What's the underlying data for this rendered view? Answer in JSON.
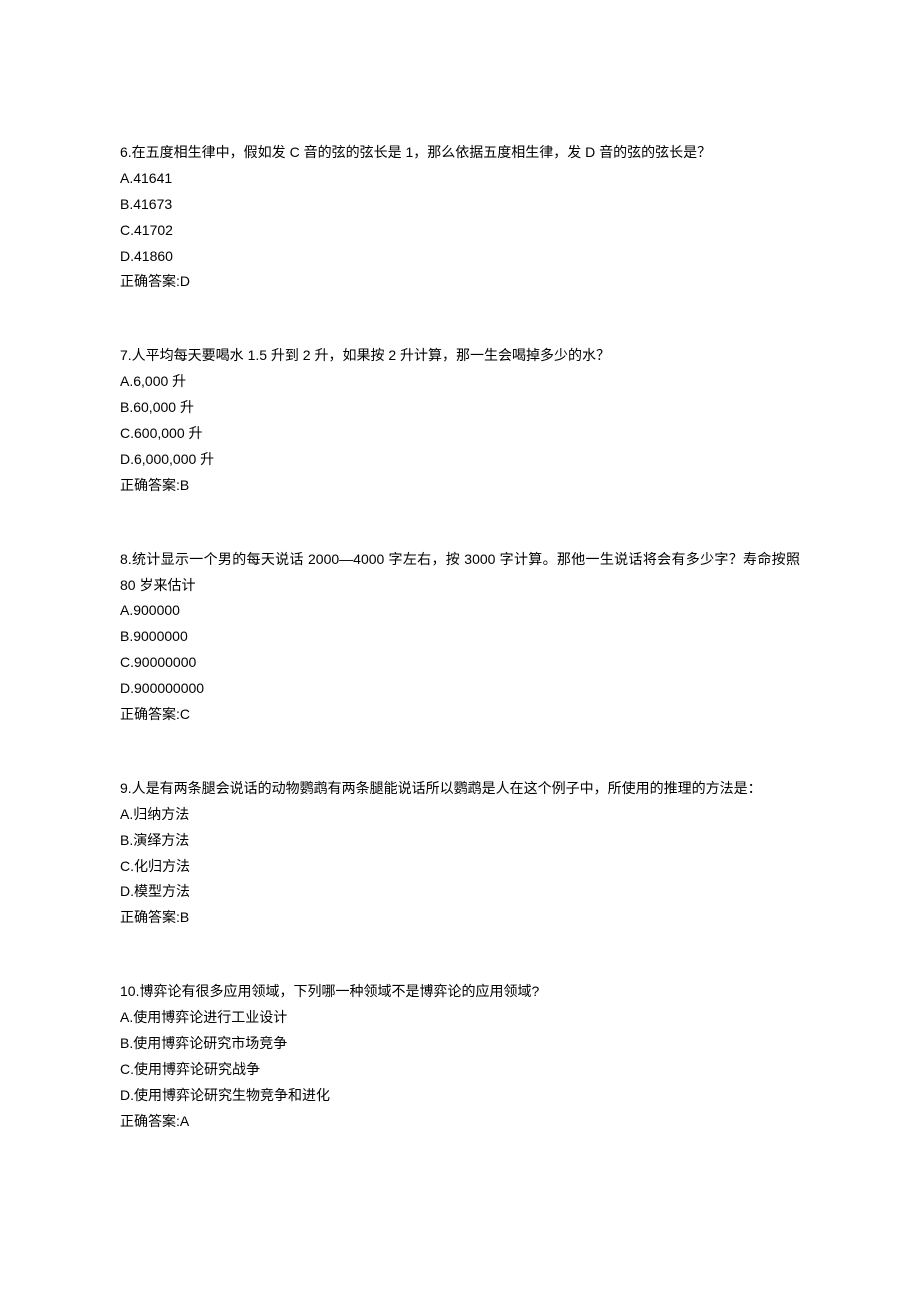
{
  "page": {
    "background_color": "#ffffff",
    "text_color": "#000000",
    "font_family": "Microsoft YaHei, SimSun, Arial, sans-serif",
    "font_size_pt": 11,
    "line_height": 1.85
  },
  "questions": [
    {
      "number": "6",
      "text": "6.在五度相生律中，假如发 C 音的弦的弦长是 1，那么依据五度相生律，发 D 音的弦的弦长是？",
      "options": [
        "A.41641",
        "B.41673",
        "C.41702",
        "D.41860"
      ],
      "answer": "正确答案:D"
    },
    {
      "number": "7",
      "text": "7.人平均每天要喝水 1.5 升到 2 升，如果按 2 升计算，那一生会喝掉多少的水？",
      "options": [
        "A.6,000 升",
        "B.60,000 升",
        "C.600,000 升",
        "D.6,000,000 升"
      ],
      "answer": "正确答案:B"
    },
    {
      "number": "8",
      "text": "8.统计显示一个男的每天说话 2000—4000 字左右，按 3000 字计算。那他一生说话将会有多少字？寿命按照 80 岁来估计",
      "options": [
        "A.900000",
        "B.9000000",
        "C.90000000",
        "D.900000000"
      ],
      "answer": "正确答案:C"
    },
    {
      "number": "9",
      "text": "9.人是有两条腿会说话的动物鹦鹉有两条腿能说话所以鹦鹉是人在这个例子中，所使用的推理的方法是：",
      "options": [
        "A.归纳方法",
        "B.演绎方法",
        "C.化归方法",
        "D.模型方法"
      ],
      "answer": "正确答案:B"
    },
    {
      "number": "10",
      "text": "10.博弈论有很多应用领域，下列哪一种领域不是博弈论的应用领域?",
      "options": [
        "A.使用博弈论进行工业设计",
        "B.使用博弈论研究市场竞争",
        "C.使用博弈论研究战争",
        "D.使用博弈论研究生物竞争和进化"
      ],
      "answer": "正确答案:A"
    }
  ]
}
